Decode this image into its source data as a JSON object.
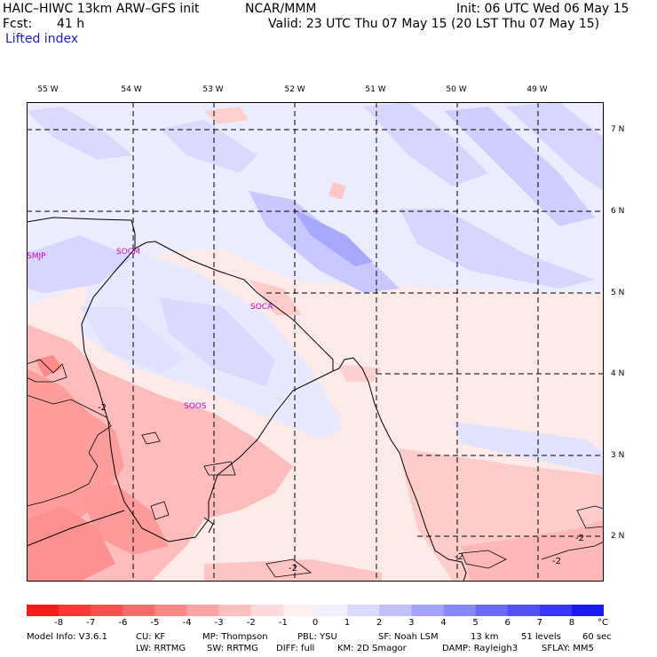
{
  "header": {
    "model": "HAIC–HIWC 13km ARW–GFS init",
    "org": "NCAR/MMM",
    "init": "Init: 06 UTC Wed 06 May 15",
    "fcst_label": "Fcst:",
    "fcst_value": "41 h",
    "valid": "Valid: 23 UTC Thu 07 May 15 (20 LST Thu 07 May 15)",
    "field": "Lifted index"
  },
  "map": {
    "lon_labels": [
      "55 W",
      "54 W",
      "53 W",
      "52 W",
      "51 W",
      "50 W",
      "49 W"
    ],
    "lat_labels": [
      "7 N",
      "6 N",
      "5 N",
      "4 N",
      "3 N",
      "2 N"
    ],
    "stations": [
      "SMJP",
      "SOCM",
      "SOCA",
      "SOOS"
    ],
    "contour_labels": [
      "-2",
      "-2",
      "-2",
      "-2",
      "-2"
    ]
  },
  "legend": {
    "ticks": [
      "-8",
      "-7",
      "-6",
      "-5",
      "-4",
      "-3",
      "-2",
      "-1",
      "0",
      "1",
      "2",
      "3",
      "4",
      "5",
      "6",
      "7",
      "8"
    ],
    "unit": "°C",
    "colors": [
      "#ff1a1a",
      "#ff3838",
      "#ff5050",
      "#ff6a6a",
      "#ff8888",
      "#ffa4a4",
      "#ffc0c0",
      "#ffdada",
      "#fff0f0",
      "#f0f0ff",
      "#dadaff",
      "#c0c0ff",
      "#a4a4ff",
      "#8888ff",
      "#6a6aff",
      "#5050ff",
      "#3838ff",
      "#1a1aff"
    ]
  },
  "footer": {
    "line1": [
      "Model Info: V3.6.1",
      "CU: KF",
      "MP: Thompson",
      "PBL: YSU",
      "SF: Noah LSM",
      "13 km",
      "51 levels",
      "60 sec"
    ],
    "line2": [
      "LW: RRTMG",
      "SW: RRTMG",
      "DIFF: full",
      "KM: 2D Smagor",
      "DAMP: Rayleigh3",
      "SFLAY: MM5"
    ]
  }
}
